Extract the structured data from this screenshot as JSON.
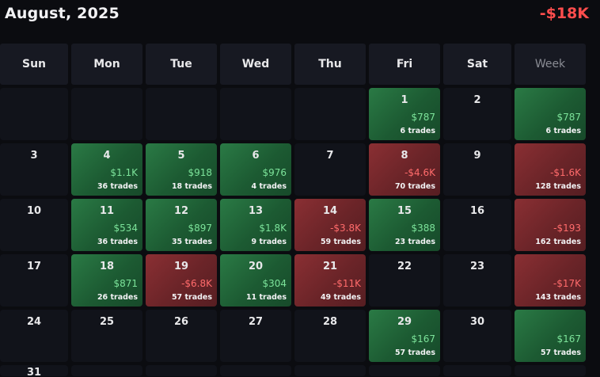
{
  "header": {
    "title": "August, 2025",
    "total": "-$18K"
  },
  "colors": {
    "positive": "#2a7a45",
    "negative": "#8a2f33",
    "negative_text": "#ff4d4d",
    "positive_text": "#7ce39a"
  },
  "weekdays": [
    "Sun",
    "Mon",
    "Tue",
    "Wed",
    "Thu",
    "Fri",
    "Sat",
    "Week"
  ],
  "weeks": [
    {
      "days": [
        {
          "day": "",
          "value": "",
          "trades": "",
          "tone": "empty"
        },
        {
          "day": "",
          "value": "",
          "trades": "",
          "tone": "empty"
        },
        {
          "day": "",
          "value": "",
          "trades": "",
          "tone": "empty"
        },
        {
          "day": "",
          "value": "",
          "trades": "",
          "tone": "empty"
        },
        {
          "day": "",
          "value": "",
          "trades": "",
          "tone": "empty"
        },
        {
          "day": "1",
          "value": "$787",
          "trades": "6 trades",
          "tone": "pos"
        },
        {
          "day": "2",
          "value": "",
          "trades": "",
          "tone": "none"
        }
      ],
      "week": {
        "value": "$787",
        "trades": "6 trades",
        "tone": "pos"
      }
    },
    {
      "days": [
        {
          "day": "3",
          "value": "",
          "trades": "",
          "tone": "none"
        },
        {
          "day": "4",
          "value": "$1.1K",
          "trades": "36 trades",
          "tone": "pos"
        },
        {
          "day": "5",
          "value": "$918",
          "trades": "18 trades",
          "tone": "pos"
        },
        {
          "day": "6",
          "value": "$976",
          "trades": "4 trades",
          "tone": "pos"
        },
        {
          "day": "7",
          "value": "",
          "trades": "",
          "tone": "none"
        },
        {
          "day": "8",
          "value": "-$4.6K",
          "trades": "70 trades",
          "tone": "neg"
        },
        {
          "day": "9",
          "value": "",
          "trades": "",
          "tone": "none"
        }
      ],
      "week": {
        "value": "-$1.6K",
        "trades": "128 trades",
        "tone": "neg"
      }
    },
    {
      "days": [
        {
          "day": "10",
          "value": "",
          "trades": "",
          "tone": "none"
        },
        {
          "day": "11",
          "value": "$534",
          "trades": "36 trades",
          "tone": "pos"
        },
        {
          "day": "12",
          "value": "$897",
          "trades": "35 trades",
          "tone": "pos"
        },
        {
          "day": "13",
          "value": "$1.8K",
          "trades": "9 trades",
          "tone": "pos"
        },
        {
          "day": "14",
          "value": "-$3.8K",
          "trades": "59 trades",
          "tone": "neg"
        },
        {
          "day": "15",
          "value": "$388",
          "trades": "23 trades",
          "tone": "pos"
        },
        {
          "day": "16",
          "value": "",
          "trades": "",
          "tone": "none"
        }
      ],
      "week": {
        "value": "-$193",
        "trades": "162 trades",
        "tone": "neg"
      }
    },
    {
      "days": [
        {
          "day": "17",
          "value": "",
          "trades": "",
          "tone": "none"
        },
        {
          "day": "18",
          "value": "$871",
          "trades": "26 trades",
          "tone": "pos"
        },
        {
          "day": "19",
          "value": "-$6.8K",
          "trades": "57 trades",
          "tone": "neg"
        },
        {
          "day": "20",
          "value": "$304",
          "trades": "11 trades",
          "tone": "pos"
        },
        {
          "day": "21",
          "value": "-$11K",
          "trades": "49 trades",
          "tone": "neg"
        },
        {
          "day": "22",
          "value": "",
          "trades": "",
          "tone": "none"
        },
        {
          "day": "23",
          "value": "",
          "trades": "",
          "tone": "none"
        }
      ],
      "week": {
        "value": "-$17K",
        "trades": "143 trades",
        "tone": "neg"
      }
    },
    {
      "days": [
        {
          "day": "24",
          "value": "",
          "trades": "",
          "tone": "none"
        },
        {
          "day": "25",
          "value": "",
          "trades": "",
          "tone": "none"
        },
        {
          "day": "26",
          "value": "",
          "trades": "",
          "tone": "none"
        },
        {
          "day": "27",
          "value": "",
          "trades": "",
          "tone": "none"
        },
        {
          "day": "28",
          "value": "",
          "trades": "",
          "tone": "none"
        },
        {
          "day": "29",
          "value": "$167",
          "trades": "57 trades",
          "tone": "pos"
        },
        {
          "day": "30",
          "value": "",
          "trades": "",
          "tone": "none"
        }
      ],
      "week": {
        "value": "$167",
        "trades": "57 trades",
        "tone": "pos"
      }
    },
    {
      "days": [
        {
          "day": "31",
          "value": "",
          "trades": "",
          "tone": "none"
        },
        {
          "day": "",
          "value": "",
          "trades": "",
          "tone": "empty"
        },
        {
          "day": "",
          "value": "",
          "trades": "",
          "tone": "empty"
        },
        {
          "day": "",
          "value": "",
          "trades": "",
          "tone": "empty"
        },
        {
          "day": "",
          "value": "",
          "trades": "",
          "tone": "empty"
        },
        {
          "day": "",
          "value": "",
          "trades": "",
          "tone": "empty"
        },
        {
          "day": "",
          "value": "",
          "trades": "",
          "tone": "empty"
        }
      ],
      "week": {
        "value": "",
        "trades": "",
        "tone": "none"
      }
    }
  ]
}
